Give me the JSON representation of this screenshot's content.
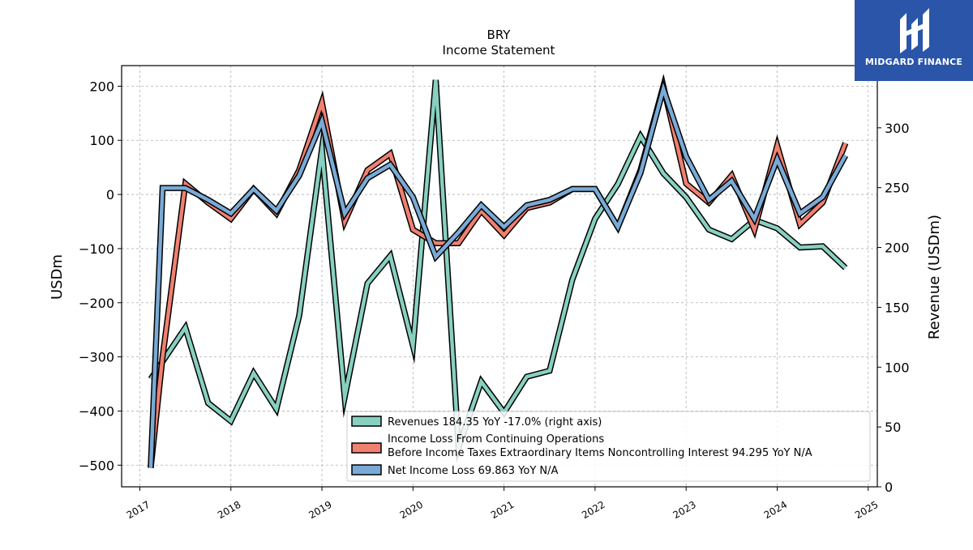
{
  "brand": {
    "name": "MIDGARD FINANCE",
    "color": "#2a55a8"
  },
  "chart_data": {
    "type": "line",
    "title": "BRY",
    "subtitle": "Income Statement",
    "ylabel": "USDm",
    "y2label": "Revenue (USDm)",
    "xlim": [
      2016.8,
      2025.1
    ],
    "ylim": [
      -540,
      238
    ],
    "y2lim": [
      0,
      352
    ],
    "x_ticks": [
      2017,
      2018,
      2019,
      2020,
      2021,
      2022,
      2023,
      2024,
      2025
    ],
    "y_ticks": [
      -500,
      -400,
      -300,
      -200,
      -100,
      0,
      100,
      200
    ],
    "y2_ticks": [
      0,
      50,
      100,
      150,
      200,
      250,
      300
    ],
    "grid": true,
    "legend_position": "lower-right",
    "series": [
      {
        "name": "Revenues",
        "legend": "Revenues  184.35 YoY -17.0% (right axis)",
        "axis": "right",
        "color": "#88d0c0",
        "x": [
          2017.12,
          2017.5,
          2017.75,
          2018.0,
          2018.25,
          2018.5,
          2018.75,
          2019.0,
          2019.25,
          2019.5,
          2019.75,
          2020.0,
          2020.25,
          2020.5,
          2020.75,
          2021.0,
          2021.25,
          2021.5,
          2021.75,
          2022.0,
          2022.25,
          2022.5,
          2022.75,
          2023.0,
          2023.25,
          2023.5,
          2023.75,
          2024.0,
          2024.25,
          2024.5,
          2024.75
        ],
        "values": [
          90,
          133,
          70,
          55,
          95,
          65,
          143,
          282,
          75,
          170,
          193,
          118,
          340,
          33,
          88,
          62,
          92,
          97,
          173,
          224,
          253,
          293,
          262,
          242,
          215,
          207,
          223,
          216,
          200,
          201,
          183
        ]
      },
      {
        "name": "Income Loss From Continuing Operations Before Income Taxes Extraordinary Items Noncontrolling Interest",
        "legend_lines": [
          "Income Loss From Continuing Operations",
          "Before Income Taxes Extraordinary Items Noncontrolling Interest  94.295 YoY N/A"
        ],
        "axis": "left",
        "color": "#f08070",
        "x": [
          2017.12,
          2017.25,
          2017.5,
          2017.75,
          2018.0,
          2018.25,
          2018.5,
          2018.75,
          2019.0,
          2019.25,
          2019.5,
          2019.75,
          2020.0,
          2020.25,
          2020.5,
          2020.75,
          2021.0,
          2021.25,
          2021.5,
          2021.75,
          2022.0,
          2022.25,
          2022.5,
          2022.75,
          2023.0,
          2023.25,
          2023.5,
          2023.75,
          2024.0,
          2024.25,
          2024.5,
          2024.75
        ],
        "values": [
          -505,
          -300,
          20,
          -15,
          -45,
          10,
          -35,
          45,
          170,
          -50,
          45,
          75,
          -65,
          -90,
          -90,
          -30,
          -75,
          -25,
          -15,
          10,
          10,
          -60,
          45,
          200,
          20,
          -15,
          35,
          -65,
          90,
          -55,
          -15,
          95
        ]
      },
      {
        "name": "Net Income Loss",
        "legend": "Net Income Loss  69.863 YoY N/A",
        "axis": "left",
        "color": "#7aaad6",
        "x": [
          2017.12,
          2017.25,
          2017.5,
          2017.75,
          2018.0,
          2018.25,
          2018.5,
          2018.75,
          2019.0,
          2019.25,
          2019.5,
          2019.75,
          2020.0,
          2020.25,
          2020.5,
          2020.75,
          2021.0,
          2021.25,
          2021.5,
          2021.75,
          2022.0,
          2022.25,
          2022.5,
          2022.75,
          2023.0,
          2023.25,
          2023.5,
          2023.75,
          2024.0,
          2024.25,
          2024.5,
          2024.75
        ],
        "values": [
          -505,
          12,
          12,
          -10,
          -35,
          10,
          -30,
          35,
          135,
          -35,
          30,
          55,
          -5,
          -115,
          -70,
          -20,
          -60,
          -20,
          -10,
          10,
          10,
          -60,
          40,
          195,
          70,
          -10,
          25,
          -45,
          65,
          -35,
          -5,
          72
        ]
      }
    ]
  }
}
